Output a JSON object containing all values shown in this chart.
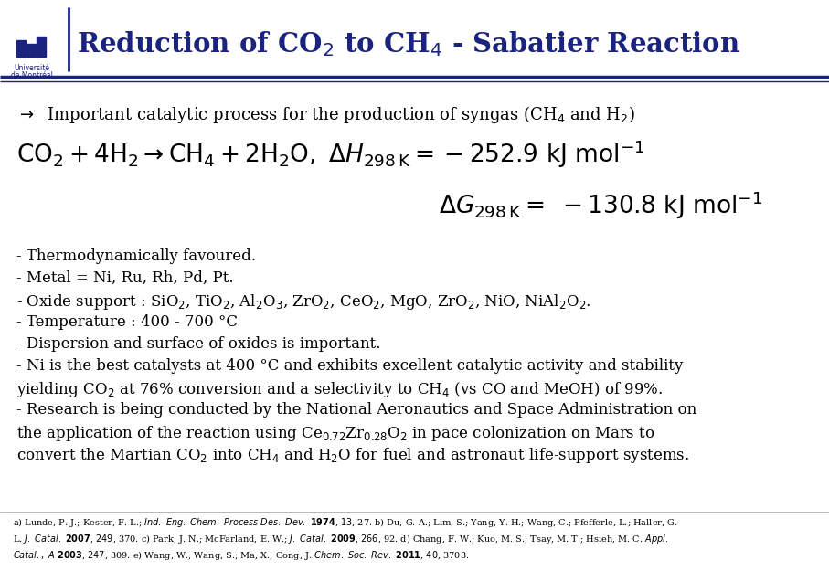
{
  "title_text": "Reduction of CO$_2$ to CH$_4$ - Sabatier Reaction",
  "title_color": "#1a237e",
  "background_color": "#ffffff",
  "header_line_color": "#1a237e",
  "bullet1": "$\\rightarrow$  Important catalytic process for the production of syngas (CH$_4$ and H$_2$)",
  "bullet_points": [
    "- Thermodynamically favoured.",
    "- Metal = Ni, Ru, Rh, Pd, Pt.",
    "- Oxide support : SiO$_2$, TiO$_2$, Al$_2$O$_3$, ZrO$_2$, CeO$_2$, MgO, ZrO$_2$, NiO, NiAl$_2$O$_2$.",
    "- Temperature : 400 - 700 °C",
    "- Dispersion and surface of oxides is important.",
    "- Ni is the best catalysts at 400 °C and exhibits excellent catalytic activity and stability",
    "yielding CO$_2$ at 76% conversion and a selectivity to CH$_4$ (vs CO and MeOH) of 99%.",
    "- Research is being conducted by the National Aeronautics and Space Administration on",
    "the application of the reaction using Ce$_{0.72}$Zr$_{0.28}$O$_2$ in pace colonization on Mars to",
    "convert the Martian CO$_2$ into CH$_4$ and H$_2$O for fuel and astronaut life-support systems."
  ],
  "ref_line1": "a) Lunde, P. J.; Kester, F. L.; \\textit{Ind. Eng. Chem. Process Des. Dev.} \\textbf{1974}, \\textit{13}, 27. b) Du, G. A.; Lim, S.; Yang, Y. H.; Wang, C.; Pfefferle, L.; Haller, G.",
  "ref_line2": "L. \\textit{J. Catal.} \\textbf{2007}, \\textit{249}, 370. c) Park, J. N.; McFarland, E. W.; \\textit{J. Catal.} \\textbf{2009}, \\textit{266}, 92. d) Chang, F. W.; Kuo, M. S.; Tsay, M. T.; Hsieh, M. C. \\textit{Appl.}",
  "ref_line3": "\\textit{Catal., A} \\textbf{2003}, \\textit{247}, 309. e) Wang, W.; Wang, S.; Ma, X.; Gong, J. \\textit{Chem. Soc. Rev.} \\textbf{2011}, \\textit{40}, 3703.",
  "text_color": "#000000",
  "dark_blue": "#1a237e",
  "logo_text_line1": "Université",
  "logo_text_line2": "de Montréal"
}
